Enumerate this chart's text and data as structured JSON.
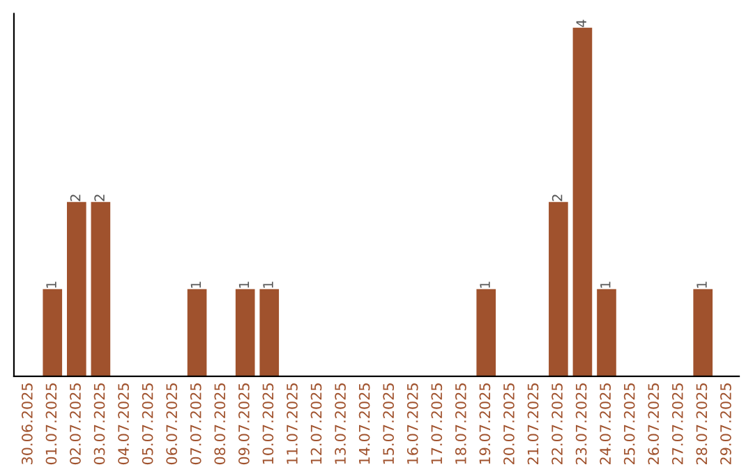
{
  "chart_data": {
    "type": "bar",
    "categories": [
      "30.06.2025",
      "01.07.2025",
      "02.07.2025",
      "03.07.2025",
      "04.07.2025",
      "05.07.2025",
      "06.07.2025",
      "07.07.2025",
      "08.07.2025",
      "09.07.2025",
      "10.07.2025",
      "11.07.2025",
      "12.07.2025",
      "13.07.2025",
      "14.07.2025",
      "15.07.2025",
      "16.07.2025",
      "17.07.2025",
      "18.07.2025",
      "19.07.2025",
      "20.07.2025",
      "21.07.2025",
      "22.07.2025",
      "23.07.2025",
      "24.07.2025",
      "25.07.2025",
      "26.07.2025",
      "27.07.2025",
      "28.07.2025",
      "29.07.2025"
    ],
    "values": [
      0,
      1,
      2,
      2,
      0,
      0,
      0,
      1,
      0,
      1,
      1,
      0,
      0,
      0,
      0,
      0,
      0,
      0,
      0,
      1,
      0,
      0,
      2,
      4,
      1,
      0,
      0,
      0,
      1,
      0
    ],
    "value_labels": [
      null,
      "1",
      "2",
      "2",
      null,
      null,
      null,
      "1",
      null,
      "1",
      "1",
      null,
      null,
      null,
      null,
      null,
      null,
      null,
      null,
      "1",
      null,
      null,
      "2",
      "4",
      "1",
      null,
      null,
      null,
      "1",
      null
    ],
    "color": "#a0522d",
    "ylim": [
      0,
      4.16
    ],
    "tick_labels": "x",
    "grid": false,
    "legend": false
  }
}
